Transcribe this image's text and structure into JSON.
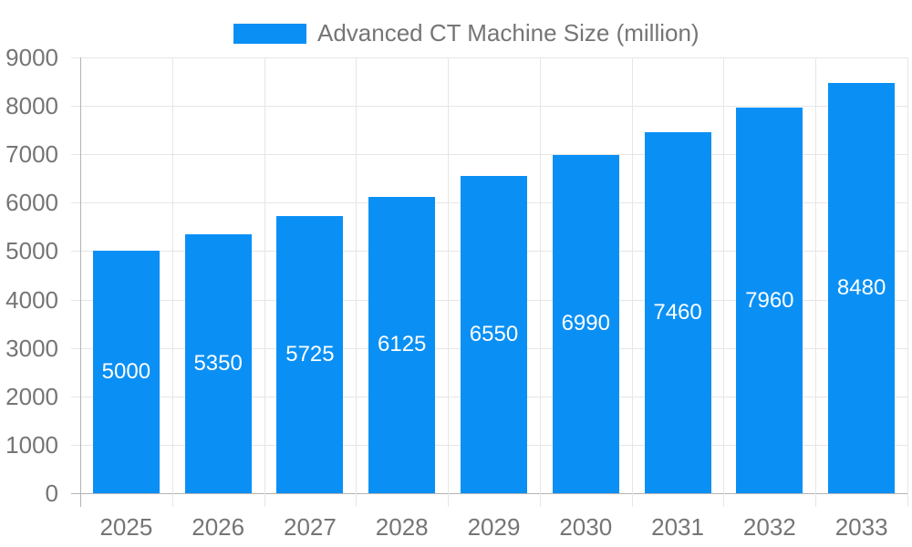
{
  "chart_data": {
    "type": "bar",
    "title": "",
    "legend": "Advanced CT Machine Size (million)",
    "legend_position": "top-center",
    "categories": [
      "2025",
      "2026",
      "2027",
      "2028",
      "2029",
      "2030",
      "2031",
      "2032",
      "2033"
    ],
    "values": [
      5000,
      5350,
      5725,
      6125,
      6550,
      6990,
      7460,
      7960,
      8480
    ],
    "data_labels": [
      "5000",
      "5350",
      "5725",
      "6125",
      "6550",
      "6990",
      "7460",
      "7960",
      "8480"
    ],
    "y_ticks": [
      "0",
      "1000",
      "2000",
      "3000",
      "4000",
      "5000",
      "6000",
      "7000",
      "8000",
      "9000"
    ],
    "ylim": [
      0,
      9000
    ],
    "ytick_step": 1000,
    "xlabel": "",
    "ylabel": "",
    "grid": true,
    "value_label_position": "inside-center",
    "value_label_color": "#FFFFFF",
    "bar_color": "#0A90F5"
  },
  "colors": {
    "bar": "#0A90F5",
    "grid": "#E6E6E6",
    "axis": "#B3B3B3",
    "tick_text": "#757575",
    "legend_text": "#757575",
    "bar_label_text": "#FFFFFF",
    "background": "#FFFFFF"
  }
}
